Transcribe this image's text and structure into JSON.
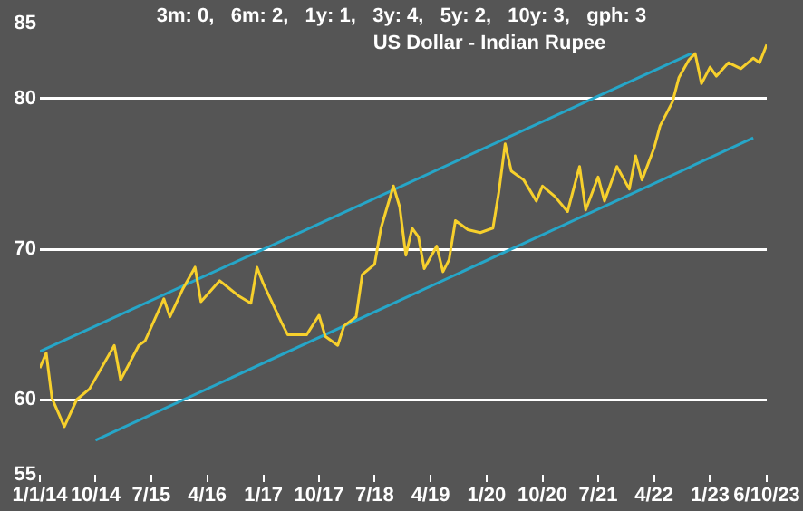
{
  "chart_data": {
    "type": "line",
    "title": "3m: 0,   6m: 2,   1y: 1,   3y: 4,   5y: 2,   10y: 3,   gph: 3",
    "subtitle": "US Dollar - Indian Rupee",
    "xlim": [
      "2014-01-01",
      "2023-10-06"
    ],
    "xticks": [
      {
        "value": "2014-01-01",
        "label": "1/1/14"
      },
      {
        "value": "2014-10-01",
        "label": "10/14"
      },
      {
        "value": "2015-07-01",
        "label": "7/15"
      },
      {
        "value": "2016-04-01",
        "label": "4/16"
      },
      {
        "value": "2017-01-01",
        "label": "1/17"
      },
      {
        "value": "2017-10-01",
        "label": "10/17"
      },
      {
        "value": "2018-07-01",
        "label": "7/18"
      },
      {
        "value": "2019-04-01",
        "label": "4/19"
      },
      {
        "value": "2020-01-01",
        "label": "1/20"
      },
      {
        "value": "2020-10-01",
        "label": "10/20"
      },
      {
        "value": "2021-07-01",
        "label": "7/21"
      },
      {
        "value": "2022-04-01",
        "label": "4/22"
      },
      {
        "value": "2023-01-01",
        "label": "1/23"
      },
      {
        "value": "2023-10-06",
        "label": "6/10/23"
      }
    ],
    "ylim": [
      55,
      85
    ],
    "yticks": [
      55,
      60,
      70,
      80,
      85
    ],
    "grid": "y",
    "legend": false,
    "marker": "none",
    "line_style": "solid",
    "series": [
      {
        "color": "#f7d02c",
        "x": [
          "2014-01",
          "2014-02",
          "2014-03",
          "2014-05",
          "2014-07",
          "2014-09",
          "2015-01",
          "2015-02",
          "2015-05",
          "2015-06",
          "2015-09",
          "2015-10",
          "2015-12",
          "2016-02",
          "2016-03",
          "2016-06",
          "2016-09",
          "2016-11",
          "2016-12",
          "2017-01",
          "2017-04",
          "2017-05",
          "2017-08",
          "2017-10",
          "2017-11",
          "2018-01",
          "2018-02",
          "2018-04",
          "2018-05",
          "2018-07",
          "2018-08",
          "2018-10",
          "2018-11",
          "2018-12",
          "2019-01",
          "2019-02",
          "2019-03",
          "2019-05",
          "2019-06",
          "2019-07",
          "2019-08",
          "2019-10",
          "2019-12",
          "2020-02",
          "2020-03",
          "2020-04",
          "2020-05",
          "2020-07",
          "2020-09",
          "2020-10",
          "2020-12",
          "2021-02",
          "2021-04",
          "2021-05",
          "2021-07",
          "2021-08",
          "2021-10",
          "2021-12",
          "2022-01",
          "2022-02",
          "2022-04",
          "2022-05",
          "2022-07",
          "2022-08",
          "2022-09-20",
          "2022-10-20",
          "2022-11-20",
          "2023-01",
          "2023-02",
          "2023-04",
          "2023-06",
          "2023-08",
          "2023-09",
          "2023-10-06"
        ],
        "values": [
          62.1,
          63.1,
          60.1,
          58.2,
          60.0,
          60.7,
          63.6,
          61.3,
          63.6,
          63.9,
          66.7,
          65.5,
          67.3,
          68.8,
          66.5,
          67.9,
          66.9,
          66.4,
          68.8,
          67.7,
          65.1,
          64.3,
          64.3,
          65.6,
          64.2,
          63.6,
          64.9,
          65.5,
          68.3,
          69.0,
          71.4,
          74.2,
          72.8,
          69.6,
          71.4,
          70.8,
          68.7,
          70.2,
          68.5,
          69.3,
          71.9,
          71.3,
          71.1,
          71.4,
          73.8,
          77.0,
          75.2,
          74.6,
          73.2,
          74.2,
          73.5,
          72.5,
          75.5,
          72.6,
          74.8,
          73.2,
          75.5,
          74.0,
          76.2,
          74.6,
          76.7,
          78.2,
          79.8,
          81.4,
          82.6,
          83.0,
          81.0,
          82.1,
          81.5,
          82.4,
          82.0,
          82.7,
          82.4,
          83.6
        ]
      },
      {
        "type": "line",
        "color": "#26a6c8",
        "x": [
          "2014-01",
          "2022-10"
        ],
        "values": [
          63.2,
          83.0
        ]
      },
      {
        "type": "line",
        "color": "#26a6c8",
        "x": [
          "2014-10",
          "2023-08"
        ],
        "values": [
          57.3,
          77.4
        ]
      }
    ]
  }
}
